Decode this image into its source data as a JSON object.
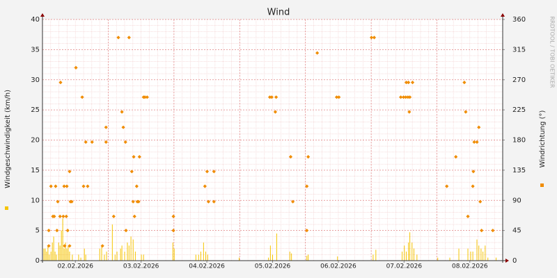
{
  "chart_data": {
    "type": "combo",
    "title": "Wind",
    "y_label": "Windgeschwindigkeit (km/h)",
    "y2_label": "Windrichtung (°)",
    "credit": "RRDTOOL / TOBI OETIKER",
    "xlim": [
      0,
      168
    ],
    "xticks": [
      {
        "value": 12,
        "label": "02.02.2026"
      },
      {
        "value": 36,
        "label": "03.02.2026"
      },
      {
        "value": 60,
        "label": "04.02.2026"
      },
      {
        "value": 84,
        "label": "05.02.2026"
      },
      {
        "value": 108,
        "label": "06.02.2026"
      },
      {
        "value": 132,
        "label": "07.02.2026"
      },
      {
        "value": 156,
        "label": "08.02.2026"
      }
    ],
    "ylim": [
      0,
      40
    ],
    "yticks": [
      0,
      5,
      10,
      15,
      20,
      25,
      30,
      35,
      40
    ],
    "y2lim": [
      0,
      360
    ],
    "y2ticks": [
      0,
      45,
      90,
      135,
      180,
      225,
      270,
      315,
      360
    ],
    "grid": true,
    "series": [
      {
        "type": "bar",
        "color": "#f5c400",
        "x": [
          0.5,
          1.0,
          1.5,
          2.0,
          2.5,
          3.1,
          3.6,
          4.1,
          4.6,
          5.1,
          5.9,
          6.4,
          6.9,
          7.4,
          7.9,
          8.4,
          8.9,
          9.4,
          9.9,
          10.9,
          13.2,
          14.0,
          15.3,
          15.8,
          20.9,
          21.6,
          22.6,
          23.4,
          25.5,
          26.5,
          27.2,
          28.5,
          29.0,
          30.0,
          31.0,
          31.6,
          32.3,
          33.1,
          33.9,
          36.1,
          36.9,
          47.6,
          48.1,
          56.0,
          57.0,
          57.8,
          58.8,
          59.6,
          60.3,
          71.8,
          82.5,
          83.2,
          84.0,
          85.5,
          90.3,
          90.9,
          96.5,
          97.0,
          107.7,
          120.7,
          121.7,
          131.3,
          132.1,
          132.8,
          133.6,
          134.1,
          134.9,
          135.6,
          136.7,
          144.3,
          148.7,
          152.0,
          155.3,
          156.3,
          157.1,
          158.6,
          159.3,
          160.1,
          160.8,
          161.6,
          162.6,
          165.6
        ],
        "values": [
          2,
          2,
          1.5,
          2.5,
          1,
          1.5,
          3,
          4,
          1.5,
          1,
          3,
          2.5,
          5,
          7,
          2,
          3,
          2,
          2.5,
          1.5,
          1,
          1,
          0.5,
          2,
          1,
          2,
          2.5,
          1,
          1.5,
          6,
          1,
          1.5,
          2,
          2.5,
          1.5,
          3,
          2.5,
          4,
          3.5,
          1.5,
          1,
          1,
          3,
          2,
          1,
          1,
          1.5,
          3,
          1.5,
          1,
          0.5,
          0.5,
          2.5,
          1,
          4.5,
          1.5,
          1.2,
          0.8,
          1,
          0.7,
          1,
          1.8,
          1.5,
          2.5,
          1.5,
          3,
          4.7,
          3,
          2,
          1,
          0.5,
          0.5,
          2,
          2,
          1.5,
          1.5,
          3.5,
          2.5,
          2,
          1.5,
          2.5,
          0.5,
          0.5
        ]
      },
      {
        "type": "scatter",
        "axis": "y2",
        "color": "#f08c00",
        "x": [
          2.3,
          2.3,
          3.1,
          3.8,
          4.3,
          4.8,
          5.3,
          5.6,
          6.4,
          6.6,
          7.6,
          7.9,
          8.1,
          8.7,
          8.9,
          9.2,
          9.9,
          9.9,
          10.2,
          10.7,
          12.2,
          14.5,
          15.0,
          15.8,
          16.5,
          18.1,
          21.9,
          23.2,
          23.2,
          26.0,
          27.7,
          29.0,
          29.5,
          30.3,
          30.5,
          31.6,
          32.6,
          33.1,
          33.3,
          33.6,
          34.4,
          34.6,
          35.1,
          35.4,
          36.9,
          37.4,
          38.2,
          47.8,
          47.8,
          59.3,
          60.1,
          60.6,
          62.6,
          62.6,
          83.0,
          83.7,
          85.0,
          85.3,
          90.6,
          91.4,
          96.5,
          96.5,
          97.0,
          100.3,
          107.4,
          108.2,
          120.1,
          121.1,
          130.8,
          131.8,
          132.6,
          132.8,
          133.4,
          133.6,
          133.9,
          134.1,
          135.1,
          147.6,
          150.9,
          154.0,
          154.5,
          155.3,
          157.1,
          157.3,
          157.6,
          158.6,
          159.3,
          159.8,
          160.3,
          164.4
        ],
        "values": [
          22,
          45,
          111,
          66,
          66,
          111,
          45,
          88,
          66,
          266,
          66,
          111,
          22,
          66,
          111,
          45,
          22,
          133,
          88,
          88,
          288,
          244,
          111,
          177,
          111,
          177,
          22,
          199,
          177,
          66,
          333,
          222,
          199,
          177,
          45,
          333,
          133,
          88,
          155,
          66,
          111,
          88,
          88,
          155,
          244,
          244,
          244,
          66,
          45,
          111,
          133,
          88,
          133,
          88,
          244,
          244,
          222,
          244,
          155,
          88,
          111,
          45,
          155,
          310,
          244,
          244,
          333,
          333,
          244,
          244,
          244,
          266,
          244,
          266,
          222,
          244,
          266,
          111,
          155,
          266,
          222,
          66,
          111,
          133,
          177,
          177,
          199,
          88,
          45,
          45
        ]
      }
    ]
  }
}
